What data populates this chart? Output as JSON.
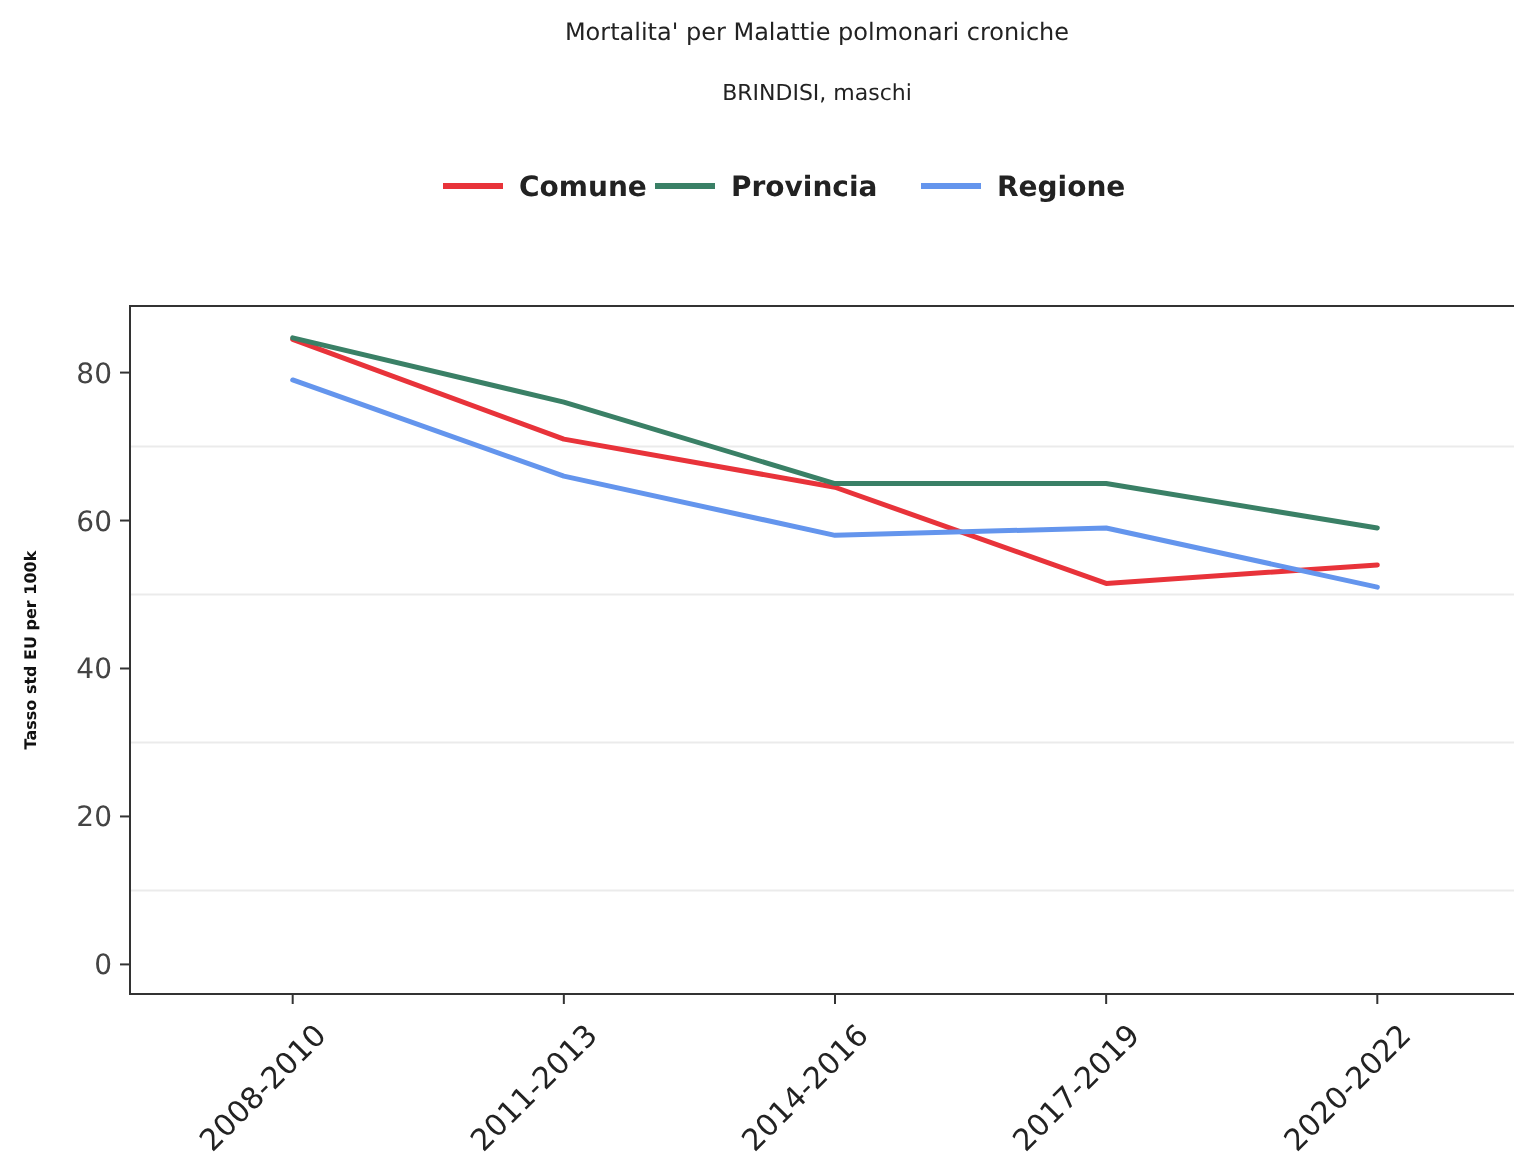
{
  "chart_data": {
    "type": "line",
    "title": "Mortalita' per Malattie polmonari croniche",
    "subtitle": "BRINDISI, maschi",
    "ylabel": "Tasso std EU per 100k",
    "categories": [
      "2008-2010",
      "2011-2013",
      "2014-2016",
      "2017-2019",
      "2020-2022"
    ],
    "series": [
      {
        "name": "Comune",
        "color": "#e8333a",
        "values": [
          84.5,
          71,
          64.5,
          51.5,
          54
        ]
      },
      {
        "name": "Provincia",
        "color": "#3a8066",
        "values": [
          84.7,
          76,
          65,
          65,
          59
        ]
      },
      {
        "name": "Regione",
        "color": "#6495ed",
        "values": [
          79,
          66,
          58,
          59,
          51
        ]
      }
    ],
    "ylim": [
      -4,
      89
    ],
    "yticks": [
      0,
      20,
      40,
      60,
      80
    ],
    "grid": "y",
    "legend": "top",
    "marker": "none",
    "line_style": "solid"
  }
}
